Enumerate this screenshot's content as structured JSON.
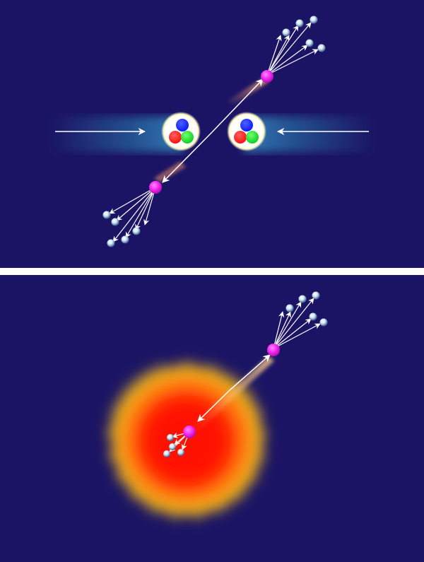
{
  "background_color": "#1b1464",
  "divider_color": "#ffffff",
  "colors": {
    "quark_blue": "#0a1cff",
    "quark_red": "#ff1010",
    "quark_green": "#10d020",
    "jet_particle": "#ee22ee",
    "hadron": "#cfe6f5",
    "arrow": "#ffffff",
    "medium_core": "#ff1000",
    "medium_edge": "#e8b820"
  },
  "panels": [
    {
      "id": "top",
      "label": "",
      "content": "jet-pair-back-to-back"
    },
    {
      "id": "bottom",
      "label": "",
      "content": "jet-quenched-in-medium"
    }
  ]
}
